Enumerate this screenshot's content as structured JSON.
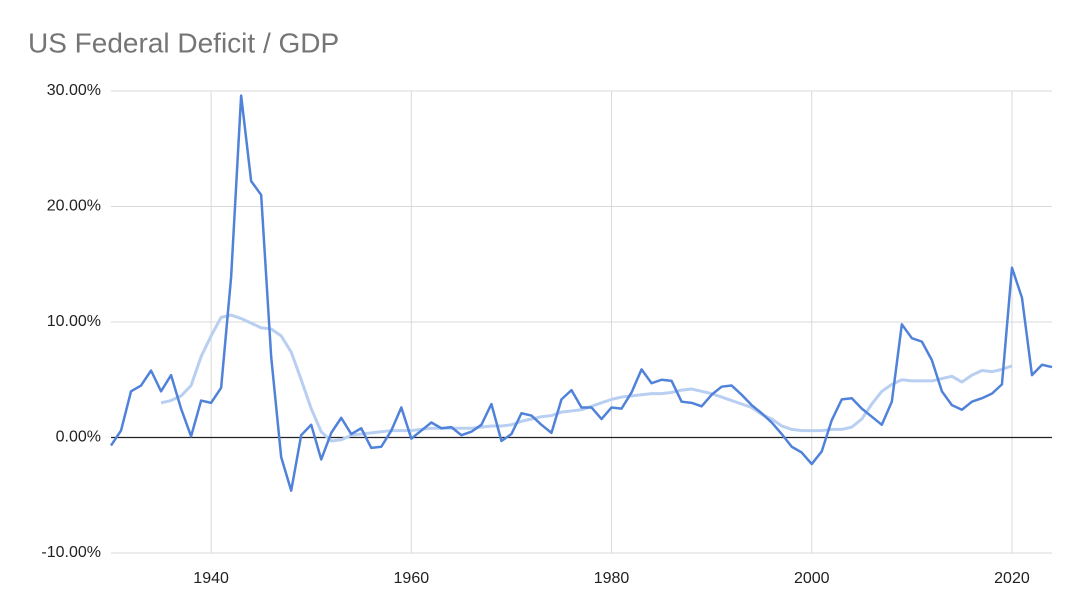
{
  "chart_data": {
    "type": "line",
    "title": "US Federal Deficit / GDP",
    "x": [
      1930,
      1931,
      1932,
      1933,
      1934,
      1935,
      1936,
      1937,
      1938,
      1939,
      1940,
      1941,
      1942,
      1943,
      1944,
      1945,
      1946,
      1947,
      1948,
      1949,
      1950,
      1951,
      1952,
      1953,
      1954,
      1955,
      1956,
      1957,
      1958,
      1959,
      1960,
      1961,
      1962,
      1963,
      1964,
      1965,
      1966,
      1967,
      1968,
      1969,
      1970,
      1971,
      1972,
      1973,
      1974,
      1975,
      1976,
      1977,
      1978,
      1979,
      1980,
      1981,
      1982,
      1983,
      1984,
      1985,
      1986,
      1987,
      1988,
      1989,
      1990,
      1991,
      1992,
      1993,
      1994,
      1995,
      1996,
      1997,
      1998,
      1999,
      2000,
      2001,
      2002,
      2003,
      2004,
      2005,
      2006,
      2007,
      2008,
      2009,
      2010,
      2011,
      2012,
      2013,
      2014,
      2015,
      2016,
      2017,
      2018,
      2019,
      2020,
      2021,
      2022,
      2023,
      2024
    ],
    "series": [
      {
        "color": "#5182d9",
        "values": [
          -0.7,
          0.6,
          4.0,
          4.5,
          5.8,
          4.0,
          5.4,
          2.5,
          0.1,
          3.2,
          3.0,
          4.3,
          13.9,
          29.6,
          22.2,
          21.0,
          7.0,
          -1.7,
          -4.6,
          0.2,
          1.1,
          -1.9,
          0.4,
          1.7,
          0.3,
          0.8,
          -0.9,
          -0.8,
          0.6,
          2.6,
          -0.1,
          0.6,
          1.3,
          0.8,
          0.9,
          0.2,
          0.5,
          1.1,
          2.9,
          -0.3,
          0.3,
          2.1,
          1.9,
          1.1,
          0.4,
          3.3,
          4.1,
          2.6,
          2.6,
          1.6,
          2.6,
          2.5,
          3.9,
          5.9,
          4.7,
          5.0,
          4.9,
          3.1,
          3.0,
          2.7,
          3.7,
          4.4,
          4.5,
          3.7,
          2.8,
          2.1,
          1.3,
          0.3,
          -0.8,
          -1.3,
          -2.3,
          -1.2,
          1.5,
          3.3,
          3.4,
          2.5,
          1.8,
          1.1,
          3.1,
          9.8,
          8.6,
          8.3,
          6.7,
          4.0,
          2.8,
          2.4,
          3.1,
          3.4,
          3.8,
          4.6,
          14.7,
          12.1,
          5.4,
          6.3,
          6.1
        ]
      },
      {
        "color": "#b9cff1",
        "values": [
          null,
          null,
          null,
          null,
          null,
          3.0,
          3.2,
          3.6,
          4.5,
          7.0,
          8.8,
          10.4,
          10.6,
          10.3,
          9.9,
          9.5,
          9.4,
          8.8,
          7.4,
          5.0,
          2.5,
          0.5,
          -0.3,
          -0.2,
          0.2,
          0.3,
          0.4,
          0.5,
          0.6,
          0.6,
          0.6,
          0.7,
          0.8,
          0.8,
          0.8,
          0.8,
          0.8,
          0.9,
          1.0,
          1.0,
          1.1,
          1.4,
          1.6,
          1.8,
          1.9,
          2.2,
          2.3,
          2.4,
          2.7,
          3.0,
          3.3,
          3.5,
          3.6,
          3.7,
          3.8,
          3.8,
          3.9,
          4.1,
          4.2,
          4.0,
          3.8,
          3.5,
          3.2,
          2.9,
          2.6,
          2.0,
          1.6,
          1.0,
          0.7,
          0.6,
          0.6,
          0.6,
          0.7,
          0.7,
          0.9,
          1.6,
          2.9,
          4.0,
          4.6,
          5.0,
          4.9,
          4.9,
          4.9,
          5.1,
          5.3,
          4.8,
          5.4,
          5.8,
          5.7,
          5.9,
          6.2,
          null,
          null,
          null,
          null
        ]
      }
    ],
    "xlim": [
      1930,
      2024
    ],
    "xticks": [
      1940,
      1960,
      1980,
      2000,
      2020
    ],
    "ylim": [
      -10,
      30
    ],
    "yticks": [
      {
        "value": -10,
        "label": "-10.00%"
      },
      {
        "value": 0,
        "label": "0.00%"
      },
      {
        "value": 10,
        "label": "10.00%"
      },
      {
        "value": 20,
        "label": "20.00%"
      },
      {
        "value": 30,
        "label": "30.00%"
      }
    ],
    "grid": true
  }
}
